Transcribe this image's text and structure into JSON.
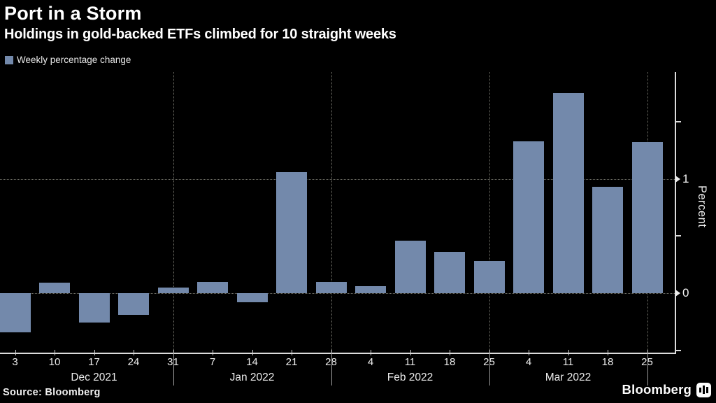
{
  "header": {
    "title": "Port in a Storm",
    "subtitle": "Holdings in gold-backed ETFs climbed for 10 straight weeks"
  },
  "legend": {
    "label": "Weekly percentage change",
    "swatch_color": "#7389ab"
  },
  "footer": {
    "source": "Source: Bloomberg",
    "brand": "Bloomberg"
  },
  "chart_data": {
    "type": "bar",
    "title": "Port in a Storm",
    "subtitle": "Holdings in gold-backed ETFs climbed for 10 straight weeks",
    "series_name": "Weekly percentage change",
    "ylabel": "Percent",
    "ylim": [
      -0.52,
      1.94
    ],
    "yticks_labeled": [
      0,
      1
    ],
    "yticks_minor": [
      -0.5,
      0.5,
      1.5
    ],
    "legend_position": "top-left",
    "grid": "dotted horizontal lines at 0 and 1; dotted vertical lines at month boundaries",
    "bar_color": "#7389ab",
    "background_color": "#000000",
    "categories": [
      "Dec 3",
      "Dec 10",
      "Dec 17",
      "Dec 24",
      "Dec 31",
      "Jan 7",
      "Jan 14",
      "Jan 21",
      "Jan 28",
      "Feb 4",
      "Feb 11",
      "Feb 18",
      "Feb 25",
      "Mar 4",
      "Mar 11",
      "Mar 18",
      "Mar 25"
    ],
    "week_labels": [
      "3",
      "10",
      "17",
      "24",
      "31",
      "7",
      "14",
      "21",
      "28",
      "4",
      "11",
      "18",
      "25",
      "4",
      "11",
      "18",
      "25"
    ],
    "values": [
      -0.34,
      0.09,
      -0.26,
      -0.19,
      0.05,
      0.1,
      -0.08,
      1.06,
      0.1,
      0.06,
      0.46,
      0.36,
      0.28,
      1.33,
      1.75,
      0.93,
      1.32
    ],
    "month_groups": [
      {
        "label": "Dec 2021",
        "weeks": [
          "3",
          "10",
          "17",
          "24",
          "31"
        ]
      },
      {
        "label": "Jan 2022",
        "weeks": [
          "7",
          "14",
          "21",
          "28"
        ]
      },
      {
        "label": "Feb 2022",
        "weeks": [
          "4",
          "11",
          "18",
          "25"
        ]
      },
      {
        "label": "Mar 2022",
        "weeks": [
          "4",
          "11",
          "18",
          "25"
        ]
      }
    ]
  }
}
